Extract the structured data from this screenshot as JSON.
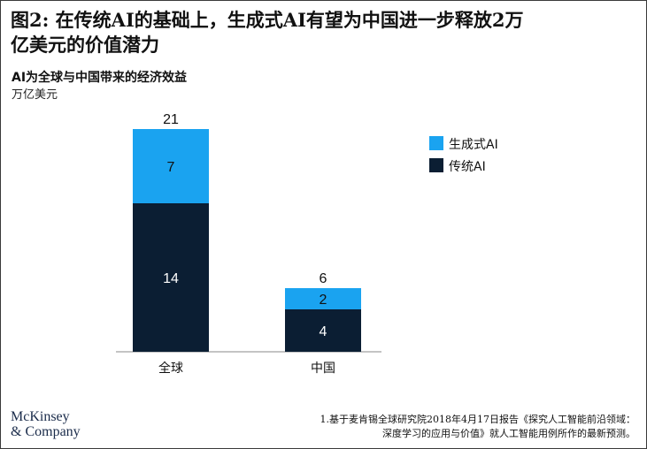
{
  "header": {
    "title_line1": "图2: 在传统AI的基础上，生成式AI有望为中国进一步释放2万",
    "title_line2": "亿美元的价值潜力"
  },
  "chart_data": {
    "type": "bar",
    "stacked": true,
    "title": "AI为全球与中国带来的经济效益",
    "ylabel": "万亿美元",
    "categories": [
      "全球",
      "中国"
    ],
    "series": [
      {
        "name": "传统AI",
        "values": [
          14,
          4
        ],
        "color": "#0b1e33"
      },
      {
        "name": "生成式AI",
        "values": [
          7,
          2
        ],
        "color": "#1aa3f0"
      }
    ],
    "totals": [
      21,
      6
    ],
    "legend": [
      "生成式AI",
      "传统AI"
    ],
    "legend_position": "top-right",
    "grid": false,
    "ylim": [
      0,
      21
    ]
  },
  "logo": {
    "line1": "McKinsey",
    "line2": "& Company"
  },
  "footnote": {
    "line1": "1.基于麦肯锡全球研究院2018年4月17日报告《探究人工智能前沿领域：",
    "line2": "深度学习的应用与价值》就人工智能用例所作的最新预测。"
  },
  "colors": {
    "text_on_dark": "#ffffff",
    "text_on_light": "#111111",
    "axis": "#888888"
  }
}
